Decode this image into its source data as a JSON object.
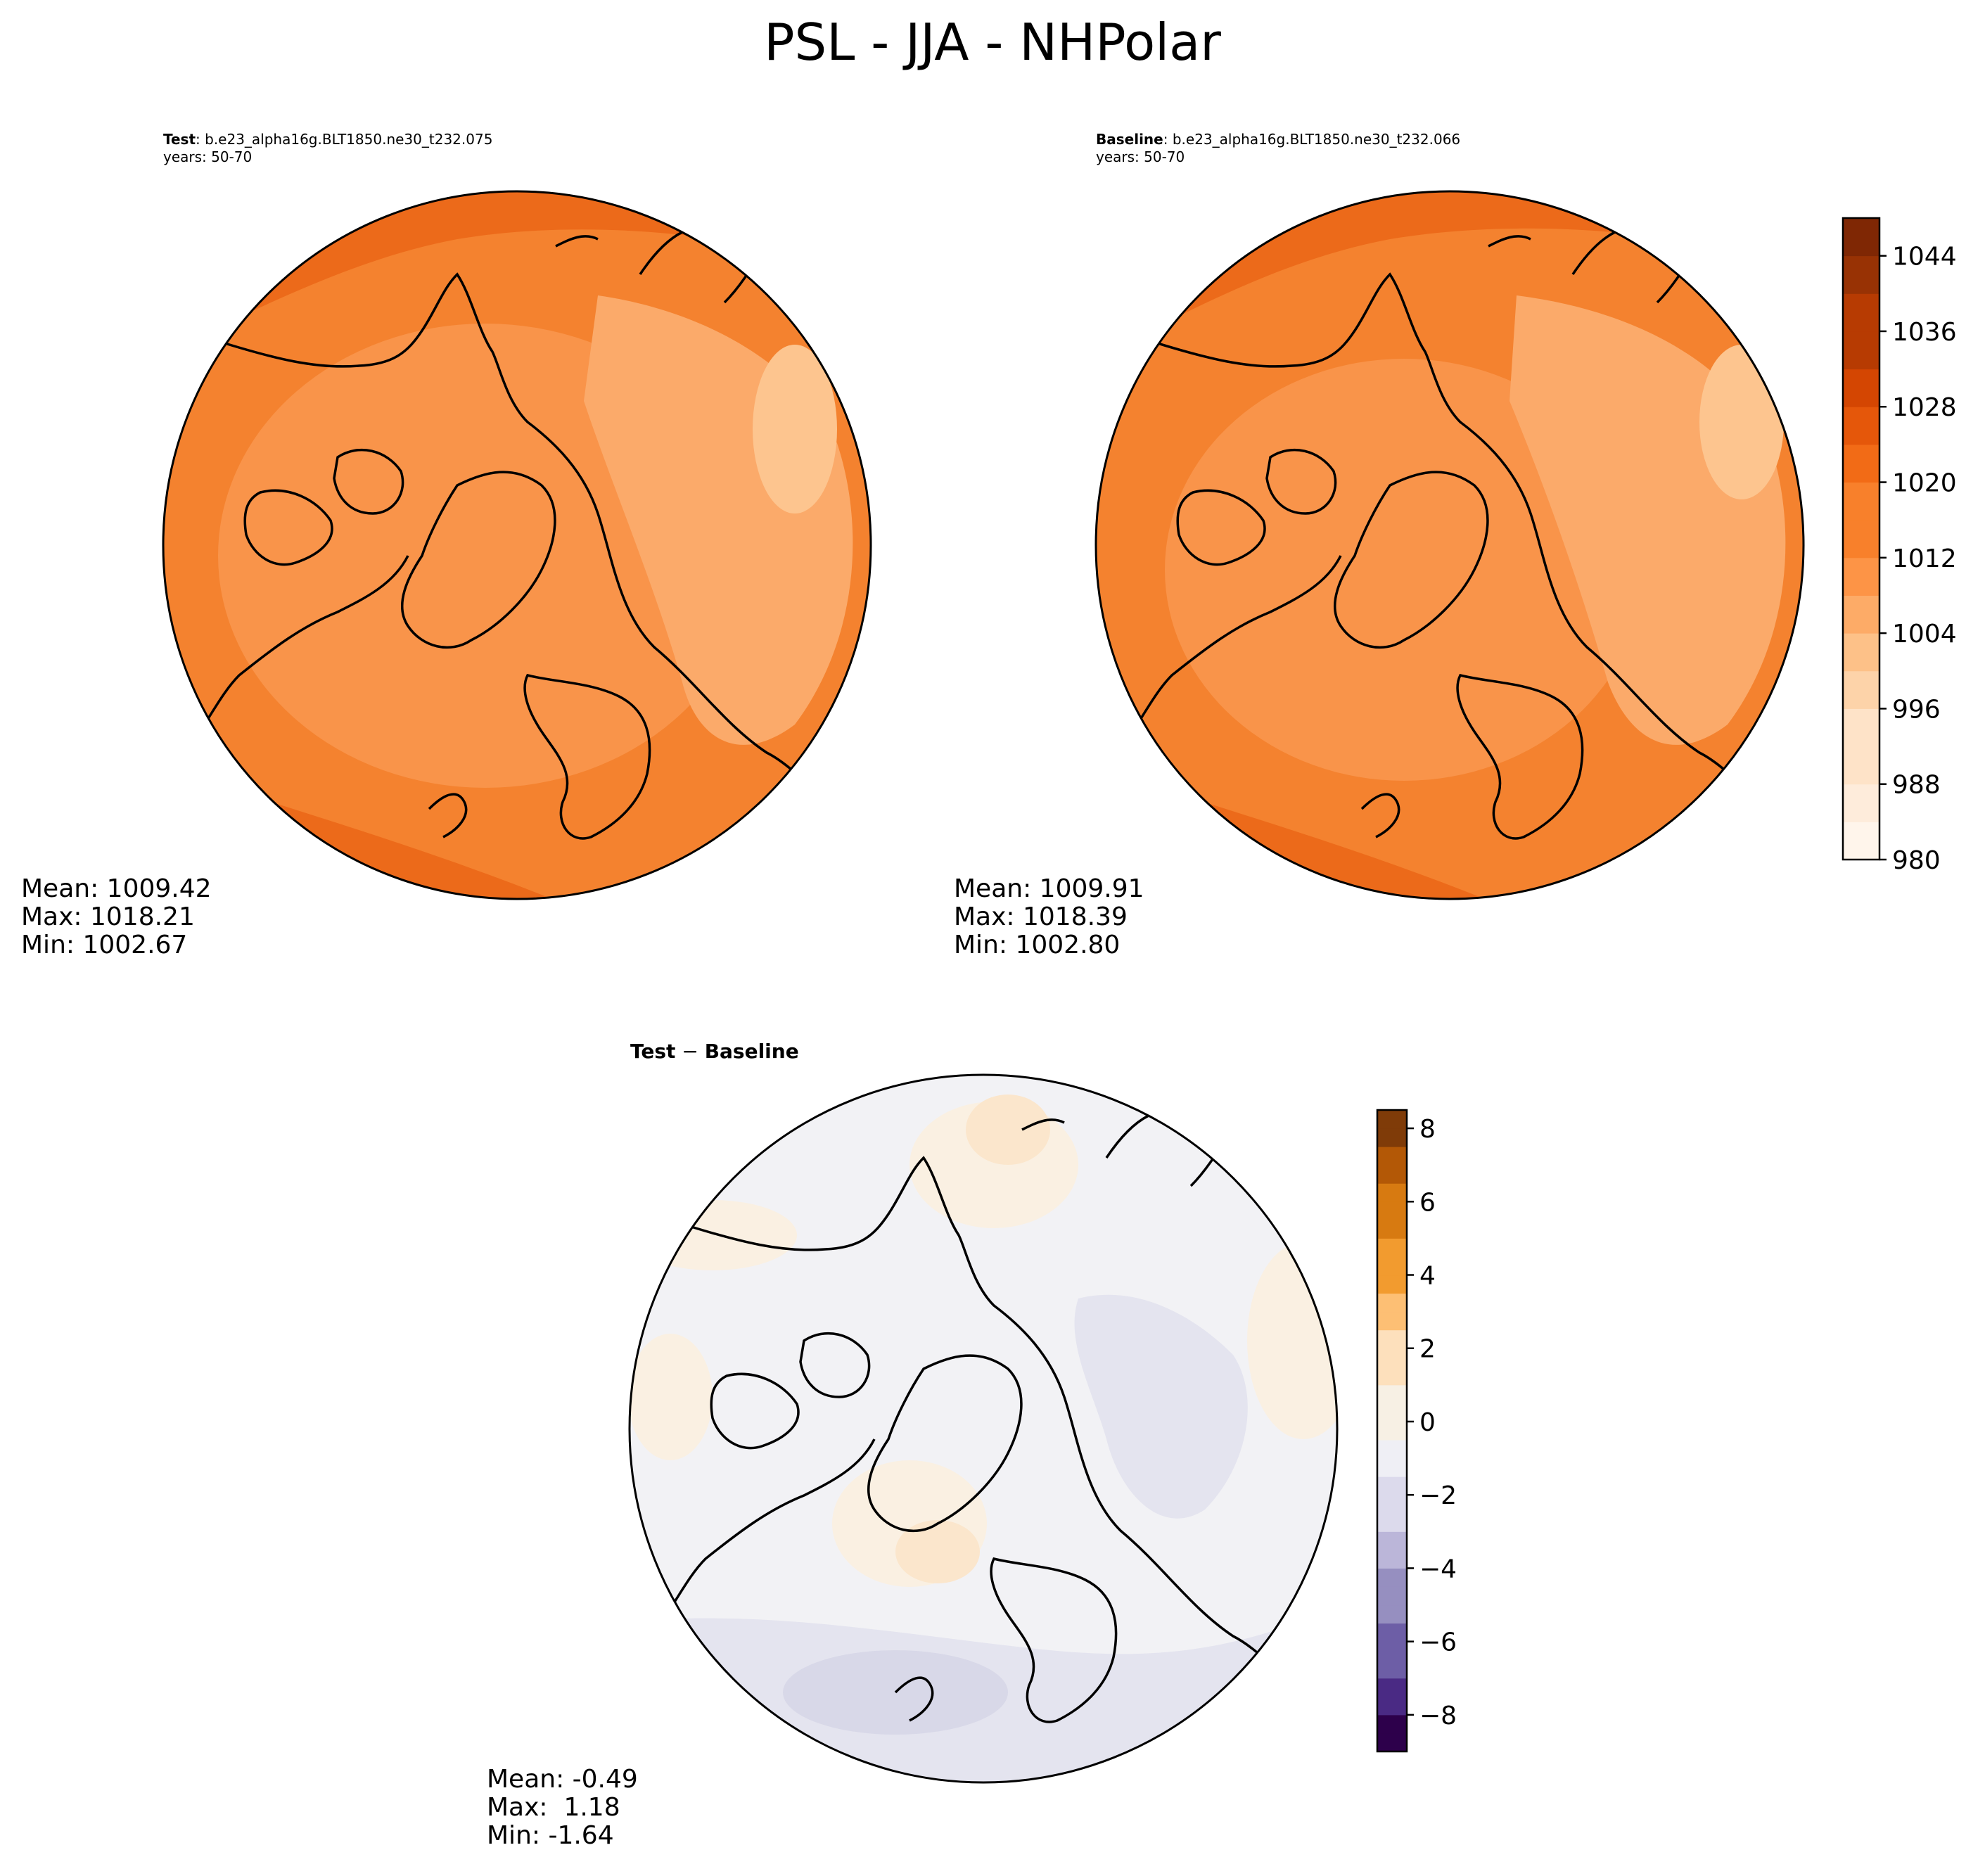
{
  "suptitle": "PSL - JJA - NHPolar",
  "panels": {
    "test": {
      "label": "Test",
      "case": ": b.e23_alpha16g.BLT1850.ne30_t232.075",
      "years": "years: 50-70",
      "mean": "Mean: 1009.42",
      "max": "Max: 1018.21",
      "min": "Min: 1002.67"
    },
    "baseline": {
      "label": "Baseline",
      "case": ": b.e23_alpha16g.BLT1850.ne30_t232.066",
      "years": "years: 50-70",
      "mean": "Mean: 1009.91",
      "max": "Max: 1018.39",
      "min": "Min: 1002.80"
    },
    "diff": {
      "title_a": "Test",
      "title_sep": " − ",
      "title_b": "Baseline",
      "mean": "Mean: -0.49",
      "max": "Max:  1.18",
      "min": "Min: -1.64"
    }
  },
  "chart_data": [
    {
      "type": "heatmap",
      "projection": "north-polar-stereographic",
      "title": "Test : b.e23_alpha16g.BLT1850.ne30_t232.075",
      "subtitle": "years: 50-70",
      "variable": "PSL",
      "stats": {
        "mean": 1009.42,
        "max": 1018.21,
        "min": 1002.67
      }
    },
    {
      "type": "heatmap",
      "projection": "north-polar-stereographic",
      "title": "Baseline : b.e23_alpha16g.BLT1850.ne30_t232.066",
      "subtitle": "years: 50-70",
      "variable": "PSL",
      "stats": {
        "mean": 1009.91,
        "max": 1018.39,
        "min": 1002.8
      },
      "colorbar": {
        "range": [
          980,
          1048
        ],
        "ticks": [
          980,
          988,
          996,
          1004,
          1012,
          1020,
          1028,
          1036,
          1044
        ],
        "tick_labels": [
          "980",
          "988",
          "996",
          "1004",
          "1012",
          "1020",
          "1028",
          "1036",
          "1044"
        ],
        "colormap": "Oranges",
        "level_step": 4
      }
    },
    {
      "type": "heatmap",
      "projection": "north-polar-stereographic",
      "title": "Test − Baseline",
      "stats": {
        "mean": -0.49,
        "max": 1.18,
        "min": -1.64
      },
      "colorbar": {
        "range": [
          -9,
          8.5
        ],
        "ticks": [
          -8,
          -6,
          -4,
          -2,
          0,
          2,
          4,
          6,
          8
        ],
        "tick_labels": [
          "−8",
          "−6",
          "−4",
          "−2",
          "0",
          "2",
          "4",
          "6",
          "8"
        ],
        "colormap": "PuOr_r",
        "level_step": 0.5
      }
    }
  ],
  "colors": {
    "psl_scale": [
      "#fff5eb",
      "#feecdb",
      "#fee3c8",
      "#fdd3a9",
      "#fdc188",
      "#fdab67",
      "#fd9446",
      "#f8802b",
      "#f26b16",
      "#e5570a",
      "#d44602",
      "#b73b02",
      "#983204",
      "#7f2704"
    ],
    "diff_scale": [
      "#2d004b",
      "#4a2a84",
      "#6d5ea6",
      "#968fc0",
      "#bbb6d9",
      "#dcdaec",
      "#efeff5",
      "#f7f0e4",
      "#fde0bc",
      "#fdbf74",
      "#f29b2f",
      "#d77a11",
      "#b35806",
      "#7f3b08"
    ],
    "test_field": {
      "band_outer": "#ec6a1a",
      "band_mid": "#f4822f",
      "band_inner": "#f9944a",
      "band_low": "#fbaa6a",
      "band_lowest": "#fdc58f"
    },
    "baseline_field": {
      "band_outer": "#ec6a1a",
      "band_mid": "#f4822f",
      "band_inner": "#f9944a",
      "band_low": "#fbaa6a",
      "band_lowest": "#fdc58f"
    },
    "diff_field": {
      "base": "#f2f2f5",
      "neg": "#e4e4ef",
      "neg2": "#d8d8e8",
      "pos": "#faf0e2",
      "pos2": "#fbe6cc"
    }
  }
}
